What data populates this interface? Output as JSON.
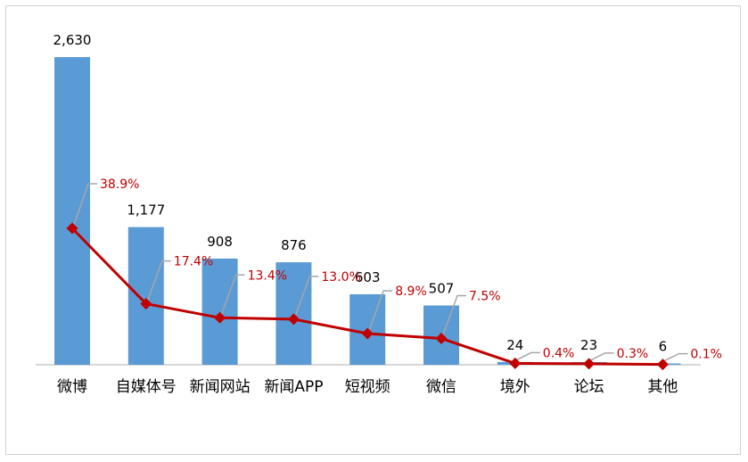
{
  "chart_data": {
    "type": "bar",
    "categories": [
      "微博",
      "自媒体号",
      "新闻网站",
      "新闻APP",
      "短视频",
      "微信",
      "境外",
      "论坛",
      "其他"
    ],
    "series": [
      {
        "type": "bar",
        "values": [
          2630,
          1177,
          908,
          876,
          603,
          507,
          24,
          23,
          6
        ],
        "value_labels": [
          "2,630",
          "1,177",
          "908",
          "876",
          "603",
          "507",
          "24",
          "23",
          "6"
        ]
      },
      {
        "type": "line",
        "values": [
          38.9,
          17.4,
          13.4,
          13.0,
          8.9,
          7.5,
          0.4,
          0.3,
          0.1
        ],
        "value_labels": [
          "38.9%",
          "17.4%",
          "13.4%",
          "13.0%",
          "8.9%",
          "7.5%",
          "0.4%",
          "0.3%",
          "0.1%"
        ]
      }
    ],
    "colors": {
      "bar": "#5b9bd5",
      "line": "#c00000",
      "leader": "#a6a6a6",
      "axis": "#bfbfbf"
    },
    "grid": false,
    "legend": "none"
  }
}
